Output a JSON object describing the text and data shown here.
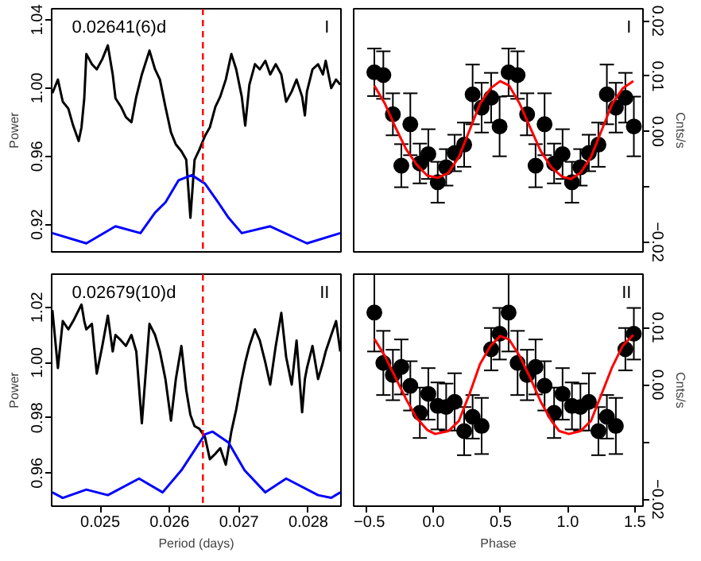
{
  "chart_data": [
    {
      "type": "line",
      "ylabel": "Power",
      "annotations": [
        "0.02641(6)d",
        "I"
      ],
      "tick_labels": "y",
      "grid": false,
      "xlim": [
        0.0243,
        0.02847
      ],
      "ylim": [
        0.904,
        1.0465
      ],
      "yticks": [
        0.92,
        0.96,
        {
          "value": 1.0,
          "label": "1.00"
        },
        1.04
      ],
      "x": [
        0.02431,
        0.02439,
        0.02446,
        0.02454,
        0.02461,
        0.02469,
        0.02473,
        0.02477,
        0.0248,
        0.02488,
        0.02495,
        0.02503,
        0.02511,
        0.02518,
        0.02522,
        0.0253,
        0.02537,
        0.02545,
        0.02552,
        0.0256,
        0.02571,
        0.02579,
        0.02586,
        0.02594,
        0.02602,
        0.02609,
        0.02617,
        0.02624,
        0.0263,
        0.02636,
        0.02643,
        0.02651,
        0.02658,
        0.02666,
        0.02673,
        0.02681,
        0.02689,
        0.02696,
        0.02704,
        0.02709,
        0.02715,
        0.02723,
        0.0273,
        0.02738,
        0.02745,
        0.02753,
        0.02761,
        0.02768,
        0.02776,
        0.02783,
        0.02791,
        0.02795,
        0.02798,
        0.02806,
        0.02814,
        0.02821,
        0.02825,
        0.02833,
        0.0284,
        0.02846
      ],
      "series": [
        {
          "color": "#000000",
          "values": [
            0.997,
            1.005,
            0.992,
            0.988,
            0.978,
            0.969,
            0.977,
            0.994,
            1.02,
            1.014,
            1.011,
            1.017,
            1.025,
            1.008,
            0.994,
            0.989,
            0.983,
            0.98,
            0.995,
            1.008,
            1.022,
            1.011,
            1.005,
            0.989,
            0.974,
            0.967,
            0.963,
            0.958,
            0.924,
            0.958,
            0.964,
            0.972,
            0.977,
            0.989,
            0.995,
            1.005,
            1.02,
            1.011,
            0.995,
            0.978,
            1.002,
            1.014,
            1.011,
            1.016,
            1.008,
            1.014,
            1.008,
            0.992,
            0.998,
            1.005,
            0.995,
            0.984,
            0.998,
            1.011,
            1.014,
            1.008,
            1.016,
            1.0,
            1.005,
            1.002
          ]
        },
        {
          "color": "#0000ff",
          "x": [
            0.02431,
            0.0248,
            0.02522,
            0.02558,
            0.02579,
            0.02594,
            0.02613,
            0.02632,
            0.02651,
            0.0267,
            0.02685,
            0.02704,
            0.02745,
            0.02798,
            0.02846
          ],
          "values": [
            0.915,
            0.909,
            0.919,
            0.915,
            0.927,
            0.933,
            0.946,
            0.949,
            0.944,
            0.933,
            0.924,
            0.915,
            0.919,
            0.909,
            0.915
          ]
        }
      ],
      "ref_lines": [
        {
          "axis": "x",
          "value": 0.02648,
          "color": "#ff0000",
          "line_style": "dashed"
        }
      ]
    },
    {
      "type": "scatter",
      "y2label": "Cnts/s",
      "annotations": [
        "I"
      ],
      "tick_labels": "y",
      "grid": false,
      "xlim": [
        -0.595,
        1.56
      ],
      "y2lim": [
        -0.0218,
        0.0222
      ],
      "y2ticks": [
        {
          "value": -0.02,
          "label": "−0.02"
        },
        {
          "value": -0.01,
          "label": null
        },
        {
          "value": 0,
          "label": "0.00"
        },
        {
          "value": 0.01,
          "label": "0.01"
        },
        {
          "value": 0.02,
          "label": "0.02"
        }
      ],
      "x": [
        -0.441,
        -0.374,
        -0.303,
        -0.24,
        -0.173,
        -0.102,
        -0.039,
        0.031,
        0.094,
        0.157,
        0.228,
        0.291,
        0.358,
        0.429,
        0.492,
        0.559,
        0.626,
        0.697,
        0.76,
        0.827,
        0.898,
        0.961,
        1.031,
        1.094,
        1.157,
        1.228,
        1.291,
        1.358,
        1.429,
        1.492
      ],
      "series": [
        {
          "color": "#000000",
          "axis": "y2",
          "marker": "circle",
          "values": [
            0.0107,
            0.0102,
            0.0031,
            -0.0062,
            0.0013,
            -0.0058,
            -0.0041,
            -0.0092,
            -0.0065,
            -0.0039,
            -0.0024,
            0.0067,
            0.0043,
            0.0061,
            0.0009,
            0.0107,
            0.0102,
            0.0031,
            -0.0062,
            0.0013,
            -0.0058,
            -0.0041,
            -0.0092,
            -0.0065,
            -0.0039,
            -0.0024,
            0.0067,
            0.0043,
            0.0061,
            0.0009
          ],
          "errors": [
            0.0043,
            0.0043,
            0.0038,
            0.0039,
            0.0056,
            0.0036,
            0.0045,
            0.0037,
            0.0033,
            0.0033,
            0.004,
            0.0054,
            0.0045,
            0.0045,
            0.0054,
            0.0043,
            0.0043,
            0.0038,
            0.0039,
            0.0056,
            0.0036,
            0.0045,
            0.0037,
            0.0033,
            0.0033,
            0.004,
            0.0054,
            0.0045,
            0.0045,
            0.0054
          ]
        },
        {
          "type": "line",
          "color": "#ff0000",
          "axis": "y2",
          "x": [
            -0.441,
            -0.362,
            -0.283,
            -0.205,
            -0.126,
            -0.047,
            0.031,
            0.11,
            0.189,
            0.268,
            0.346,
            0.425,
            0.496,
            0.563,
            0.642,
            0.72,
            0.799,
            0.878,
            0.957,
            1.024,
            1.094,
            1.173,
            1.252,
            1.331,
            1.409,
            1.488
          ],
          "values": [
            0.0083,
            0.005,
            0.0007,
            -0.0032,
            -0.006,
            -0.008,
            -0.0084,
            -0.0075,
            -0.0046,
            0.0002,
            0.005,
            0.0078,
            0.0091,
            0.0083,
            0.005,
            0.0007,
            -0.0036,
            -0.0065,
            -0.0082,
            -0.0086,
            -0.0075,
            -0.0046,
            0.0002,
            0.005,
            0.0078,
            0.0091
          ]
        }
      ]
    },
    {
      "type": "line",
      "ylabel": "Power",
      "xlabel": "Period (days)",
      "annotations": [
        "0.02679(10)d",
        "II"
      ],
      "grid": false,
      "xlim": [
        0.0243,
        0.02847
      ],
      "ylim": [
        0.948,
        1.032
      ],
      "xticks": [
        0.025,
        0.026,
        0.027,
        0.028
      ],
      "yticks": [
        0.96,
        0.98,
        {
          "value": 1.0,
          "label": "1.00"
        },
        1.02
      ],
      "x": [
        0.02431,
        0.02439,
        0.02446,
        0.02454,
        0.02461,
        0.02469,
        0.02473,
        0.02477,
        0.0248,
        0.02488,
        0.02495,
        0.02503,
        0.02511,
        0.02518,
        0.02522,
        0.0253,
        0.02537,
        0.02545,
        0.02552,
        0.0256,
        0.02571,
        0.02579,
        0.02586,
        0.02594,
        0.02602,
        0.02609,
        0.02617,
        0.02624,
        0.0263,
        0.02636,
        0.02643,
        0.02651,
        0.02658,
        0.02666,
        0.02673,
        0.02681,
        0.02689,
        0.02696,
        0.02704,
        0.02709,
        0.02715,
        0.02723,
        0.0273,
        0.02738,
        0.02745,
        0.02753,
        0.02761,
        0.02768,
        0.02776,
        0.02783,
        0.02791,
        0.02795,
        0.02798,
        0.02806,
        0.02814,
        0.02821,
        0.02825,
        0.02833,
        0.0284,
        0.02846
      ],
      "series": [
        {
          "color": "#000000",
          "values": [
            1.019,
            0.998,
            1.015,
            1.012,
            1.015,
            1.019,
            1.021,
            1.015,
            1.012,
            1.014,
            0.996,
            1.006,
            1.017,
            1.004,
            1.01,
            1.008,
            1.006,
            1.01,
            1.004,
            0.978,
            1.014,
            1.01,
            1.004,
            0.994,
            0.979,
            0.994,
            1.006,
            0.99,
            0.981,
            0.977,
            0.976,
            0.973,
            0.965,
            0.967,
            0.969,
            0.963,
            0.975,
            0.983,
            0.994,
            1.0,
            1.006,
            1.012,
            1.008,
            1.0,
            0.992,
            1.006,
            1.018,
            1.002,
            0.992,
            1.008,
            0.982,
            0.994,
            0.998,
            1.006,
            0.994,
            1.0,
            1.004,
            1.01,
            1.015,
            1.004
          ]
        },
        {
          "color": "#0000ff",
          "x": [
            0.02431,
            0.02446,
            0.0248,
            0.02511,
            0.02556,
            0.0259,
            0.02617,
            0.02651,
            0.02662,
            0.02685,
            0.02708,
            0.02738,
            0.02768,
            0.02814,
            0.02833,
            0.02846
          ],
          "values": [
            0.953,
            0.951,
            0.954,
            0.952,
            0.958,
            0.953,
            0.961,
            0.974,
            0.975,
            0.971,
            0.961,
            0.953,
            0.958,
            0.952,
            0.951,
            0.953
          ]
        }
      ],
      "ref_lines": [
        {
          "axis": "x",
          "value": 0.02648,
          "color": "#ff0000",
          "line_style": "dashed"
        }
      ]
    },
    {
      "type": "scatter",
      "xlabel": "Phase",
      "y2label": "Cnts/s",
      "annotations": [
        "II"
      ],
      "grid": false,
      "xlim": [
        -0.595,
        1.56
      ],
      "y2lim": [
        -0.0212,
        0.0193
      ],
      "xticks": [
        {
          "value": -0.5,
          "label": "−0.5"
        },
        {
          "value": 0,
          "label": "0.0"
        },
        0.5,
        {
          "value": 1,
          "label": "1.0"
        },
        1.5
      ],
      "y2ticks": [
        {
          "value": -0.02,
          "label": "−0.02"
        },
        {
          "value": -0.01,
          "label": null
        },
        {
          "value": 0,
          "label": "0.00"
        },
        {
          "value": 0.01,
          "label": "0.01"
        }
      ],
      "x": [
        -0.441,
        -0.374,
        -0.303,
        -0.24,
        -0.173,
        -0.102,
        -0.039,
        0.031,
        0.094,
        0.157,
        0.228,
        0.291,
        0.358,
        0.429,
        0.492,
        0.559,
        0.626,
        0.697,
        0.76,
        0.827,
        0.898,
        0.961,
        1.031,
        1.094,
        1.157,
        1.228,
        1.291,
        1.358,
        1.429,
        1.492
      ],
      "series": [
        {
          "color": "#000000",
          "axis": "y2",
          "marker": "circle",
          "values": [
            0.0126,
            0.0038,
            0.0017,
            0.0031,
            -0.0002,
            -0.0049,
            -0.0016,
            -0.0037,
            -0.0039,
            -0.003,
            -0.0081,
            -0.0056,
            -0.0072,
            0.0062,
            0.0089,
            0.0126,
            0.0038,
            0.0017,
            0.0031,
            -0.0002,
            -0.0049,
            -0.0016,
            -0.0037,
            -0.0039,
            -0.003,
            -0.0081,
            -0.0056,
            -0.0072,
            0.0062,
            0.0089
          ],
          "errors": [
            0.0068,
            0.0056,
            0.0044,
            0.0048,
            0.0043,
            0.0044,
            0.0045,
            0.0041,
            0.0041,
            0.005,
            0.0042,
            0.0038,
            0.0049,
            0.0037,
            0.0045,
            0.0068,
            0.0056,
            0.0044,
            0.0048,
            0.0043,
            0.0044,
            0.0045,
            0.0041,
            0.0041,
            0.005,
            0.0042,
            0.0038,
            0.0049,
            0.0037,
            0.0045
          ]
        },
        {
          "type": "line",
          "color": "#ff0000",
          "axis": "y2",
          "x": [
            -0.441,
            -0.362,
            -0.283,
            -0.205,
            -0.126,
            -0.047,
            0.012,
            0.11,
            0.189,
            0.268,
            0.346,
            0.425,
            0.496,
            0.563,
            0.642,
            0.72,
            0.799,
            0.878,
            0.937,
            1.008,
            1.094,
            1.173,
            1.252,
            1.331,
            1.409,
            1.488
          ],
          "values": [
            0.008,
            0.005,
            0.0012,
            -0.0025,
            -0.0058,
            -0.0079,
            -0.0086,
            -0.0081,
            -0.0063,
            -0.0016,
            0.0036,
            0.0068,
            0.0085,
            0.0079,
            0.005,
            0.0012,
            -0.003,
            -0.0063,
            -0.0081,
            -0.0086,
            -0.0081,
            -0.0063,
            -0.0016,
            0.0031,
            0.0068,
            0.0087
          ]
        }
      ]
    }
  ]
}
